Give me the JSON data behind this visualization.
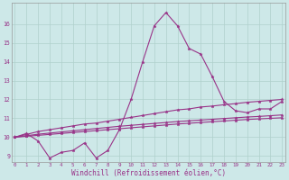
{
  "xlabel": "Windchill (Refroidissement éolien,°C)",
  "background_color": "#cde8e8",
  "grid_color": "#b0d0cc",
  "line_color": "#993388",
  "x_ticks": [
    0,
    1,
    2,
    3,
    4,
    5,
    6,
    7,
    8,
    9,
    10,
    11,
    12,
    13,
    14,
    15,
    16,
    17,
    18,
    19,
    20,
    21,
    22,
    23
  ],
  "y_ticks": [
    9,
    10,
    11,
    12,
    13,
    14,
    15,
    16
  ],
  "ylim": [
    8.7,
    17.1
  ],
  "xlim": [
    -0.3,
    23.3
  ],
  "series": [
    [
      10.0,
      10.2,
      9.8,
      8.9,
      9.2,
      9.3,
      9.7,
      8.9,
      9.3,
      10.4,
      12.0,
      14.0,
      15.9,
      16.6,
      15.9,
      14.7,
      14.4,
      13.2,
      11.9,
      11.4,
      11.3,
      11.5,
      11.5,
      11.9
    ],
    [
      10.0,
      10.15,
      10.3,
      10.4,
      10.5,
      10.6,
      10.7,
      10.75,
      10.85,
      10.95,
      11.05,
      11.15,
      11.25,
      11.35,
      11.45,
      11.5,
      11.6,
      11.65,
      11.72,
      11.78,
      11.85,
      11.9,
      11.95,
      12.0
    ],
    [
      10.0,
      10.08,
      10.16,
      10.22,
      10.28,
      10.34,
      10.4,
      10.46,
      10.52,
      10.58,
      10.63,
      10.68,
      10.73,
      10.78,
      10.83,
      10.87,
      10.91,
      10.95,
      10.99,
      11.03,
      11.07,
      11.1,
      11.14,
      11.18
    ],
    [
      10.0,
      10.05,
      10.1,
      10.15,
      10.2,
      10.25,
      10.3,
      10.35,
      10.4,
      10.45,
      10.5,
      10.55,
      10.6,
      10.65,
      10.7,
      10.74,
      10.78,
      10.82,
      10.86,
      10.9,
      10.94,
      10.97,
      11.0,
      11.03
    ]
  ],
  "marker_size": 2.5,
  "line_width": 0.8,
  "tick_fontsize": 4.2,
  "xlabel_fontsize": 5.5
}
